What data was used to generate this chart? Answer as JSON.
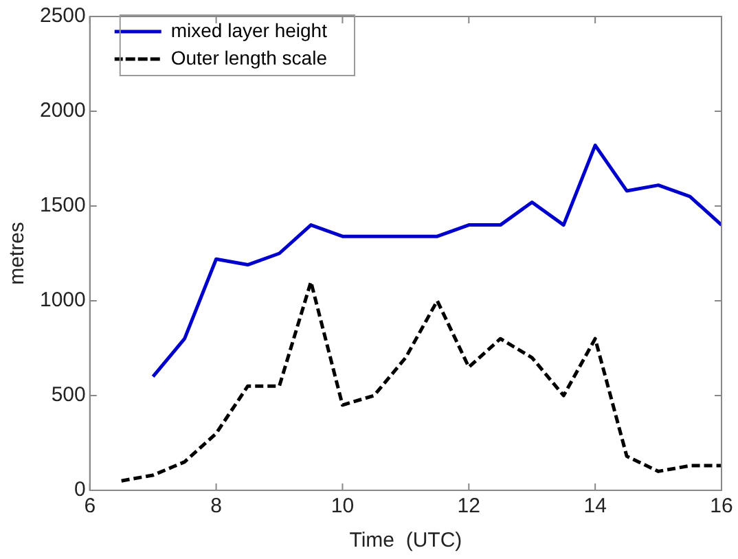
{
  "chart_data": {
    "type": "line",
    "xlabel": "Time  (UTC)",
    "ylabel": "metres",
    "xlim": [
      6,
      16
    ],
    "xticks": [
      6,
      8,
      10,
      12,
      14,
      16
    ],
    "ylim": [
      0,
      2500
    ],
    "yticks": [
      0,
      500,
      1000,
      1500,
      2000,
      2500
    ],
    "grid": false,
    "legend": "top left",
    "marker": "none",
    "series": [
      {
        "name": "mixed layer height",
        "color": "#0000cc",
        "line_style": "solid",
        "x": [
          7,
          7.5,
          8,
          8.5,
          9,
          9.5,
          10,
          10.5,
          11,
          11.5,
          12,
          12.5,
          13,
          13.5,
          14,
          14.5,
          15,
          15.5,
          16
        ],
        "values": [
          600,
          800,
          1220,
          1190,
          1250,
          1400,
          1340,
          1340,
          1340,
          1340,
          1400,
          1400,
          1520,
          1400,
          1820,
          1580,
          1610,
          1550,
          1400
        ]
      },
      {
        "name": "Outer length scale",
        "color": "#000000",
        "line_style": "dashed",
        "x": [
          6.5,
          7,
          7.5,
          8,
          8.5,
          9,
          9.5,
          10,
          10.5,
          11,
          11.5,
          12,
          12.5,
          13,
          13.5,
          14,
          14.5,
          15,
          15.5,
          16
        ],
        "values": [
          50,
          80,
          150,
          300,
          550,
          550,
          1100,
          450,
          500,
          700,
          1000,
          650,
          800,
          700,
          500,
          800,
          180,
          100,
          130,
          130
        ]
      }
    ]
  }
}
